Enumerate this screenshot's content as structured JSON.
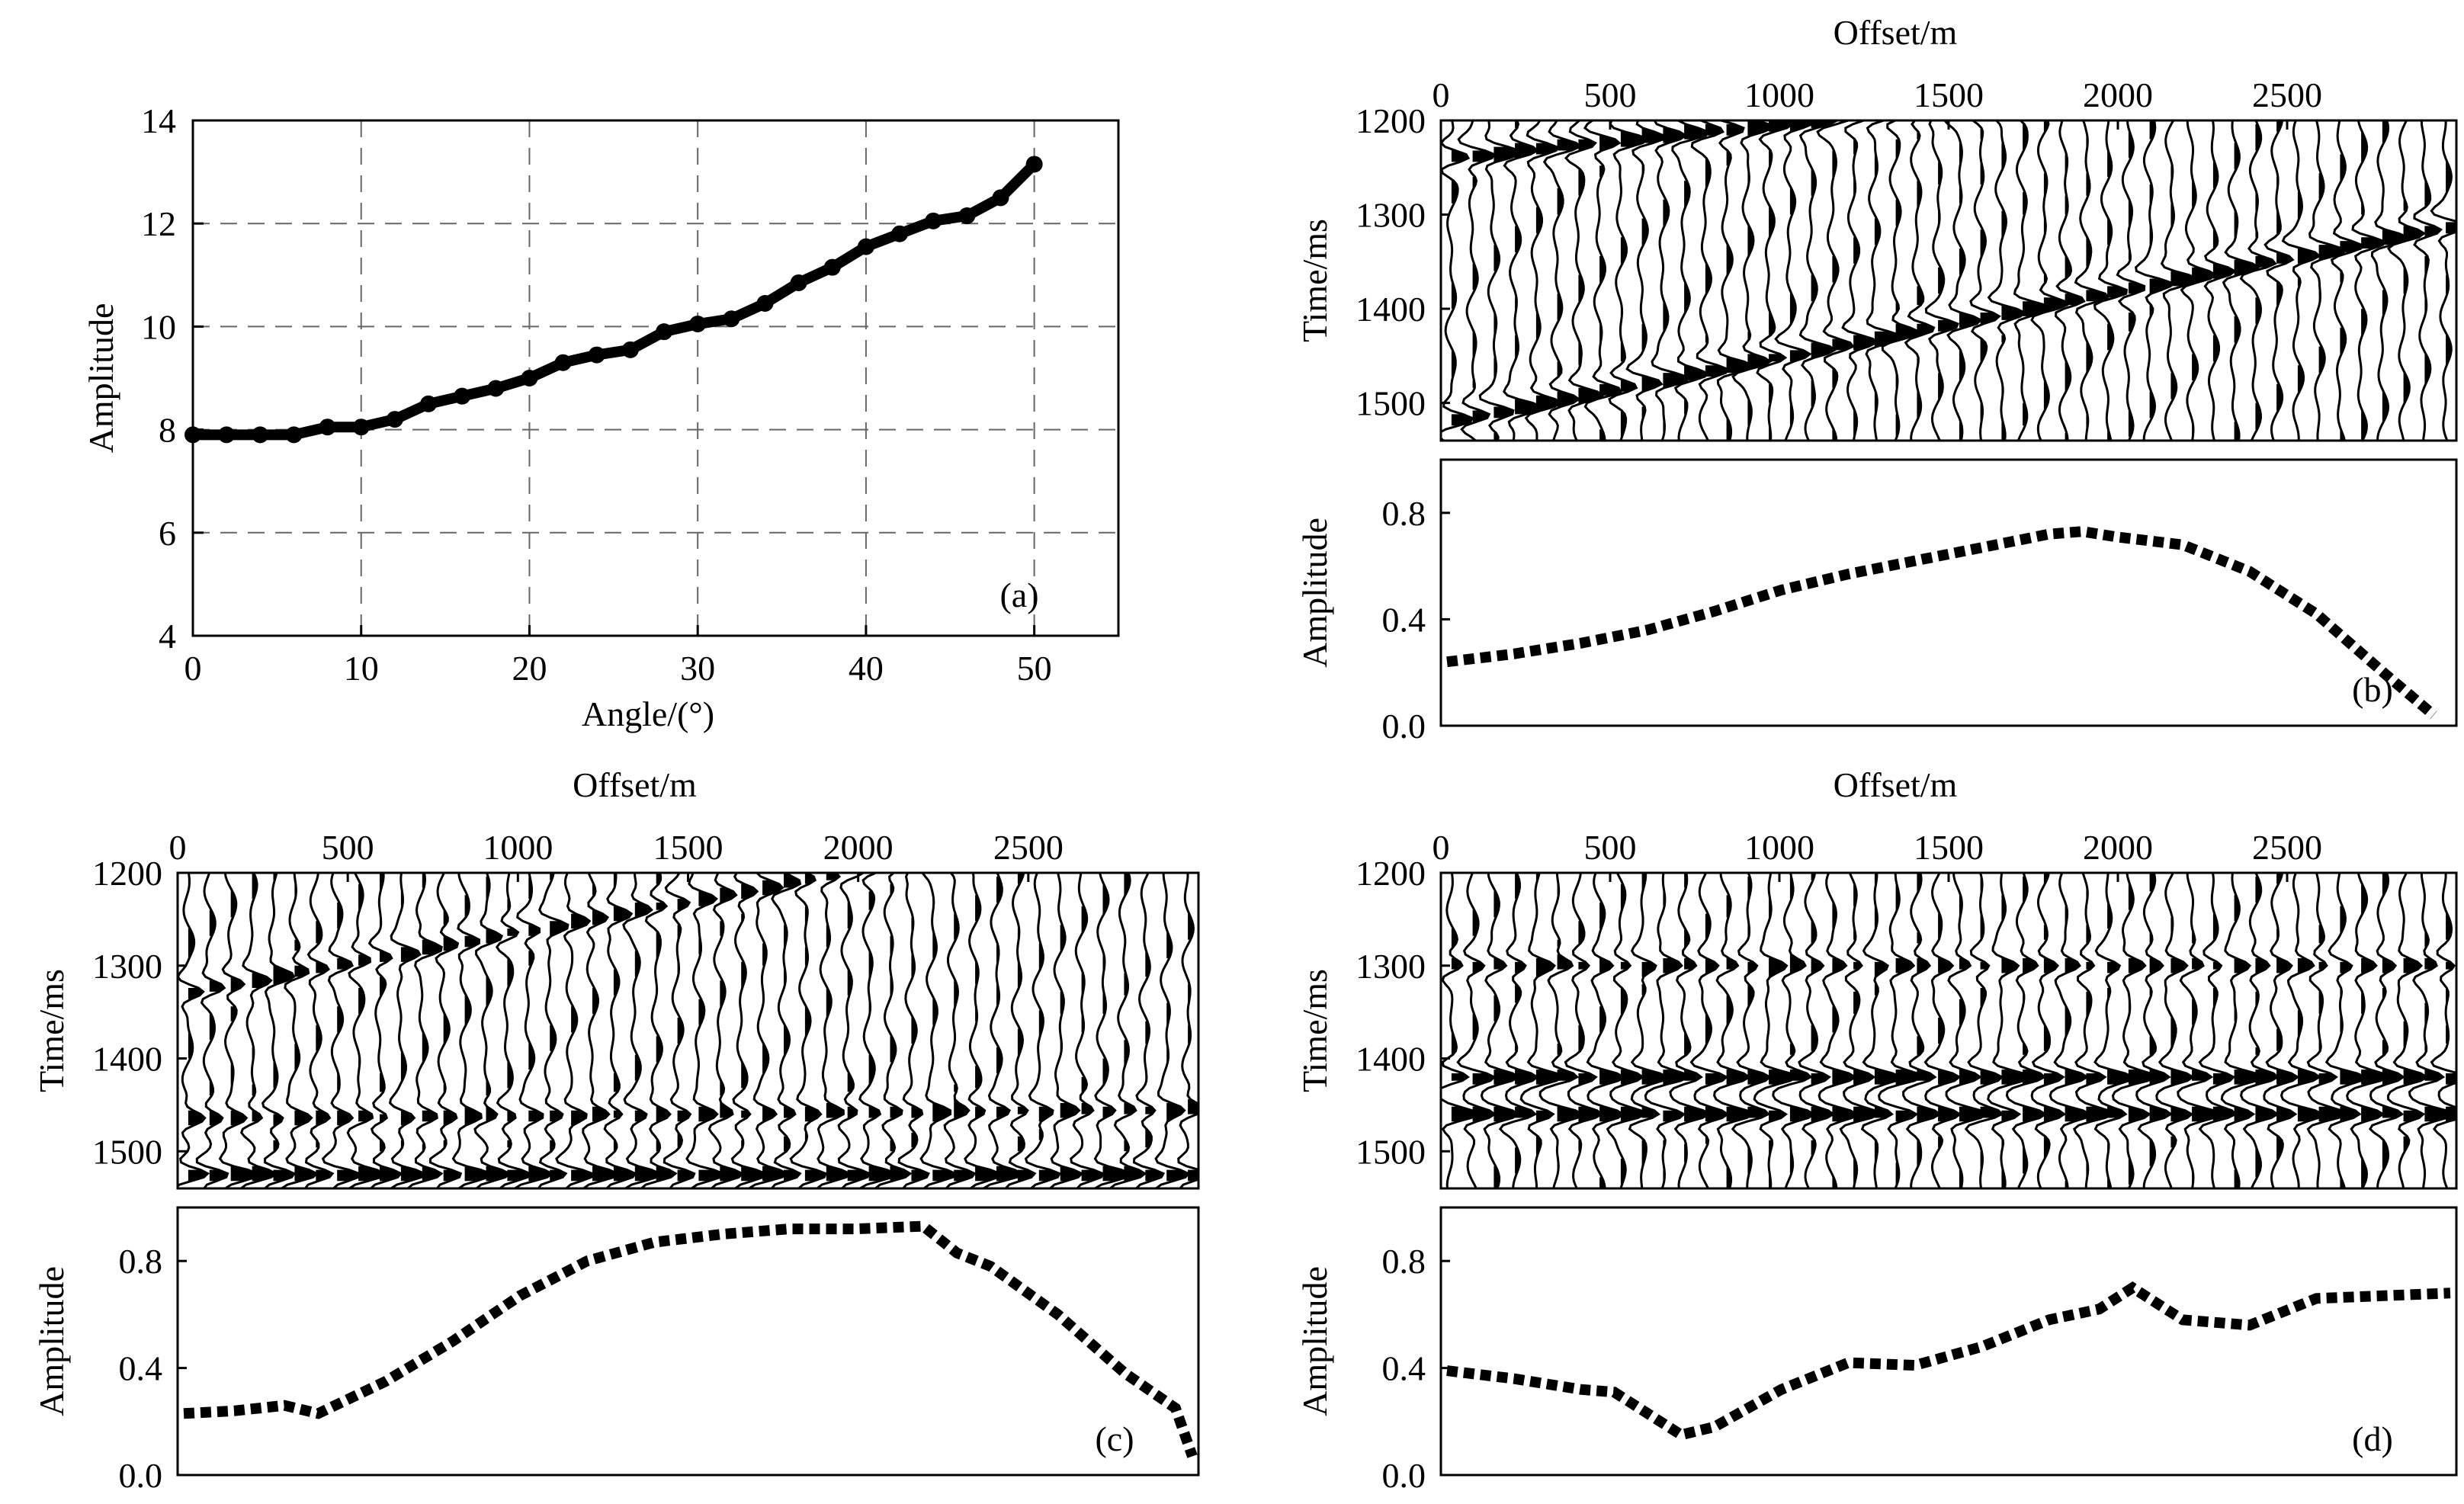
{
  "chart_data": [
    {
      "panel": "a",
      "type": "line",
      "panel_label": "(a)",
      "xlabel": "Angle/(°)",
      "ylabel": "Amplitude",
      "xlim": [
        0,
        55
      ],
      "ylim": [
        4,
        14
      ],
      "xticks": [
        0,
        10,
        20,
        30,
        40,
        50
      ],
      "yticks": [
        4,
        6,
        8,
        10,
        12,
        14
      ],
      "grid": true,
      "marker": "circle",
      "x": [
        0,
        2,
        4,
        6,
        8,
        10,
        12,
        14,
        16,
        18,
        20,
        22,
        24,
        26,
        28,
        30,
        32,
        34,
        36,
        38,
        40,
        42,
        44,
        46,
        48,
        50
      ],
      "y": [
        7.9,
        7.9,
        7.9,
        7.9,
        8.05,
        8.05,
        8.2,
        8.5,
        8.65,
        8.8,
        9.0,
        9.3,
        9.45,
        9.55,
        9.9,
        10.05,
        10.15,
        10.45,
        10.85,
        11.15,
        11.55,
        11.8,
        12.05,
        12.15,
        12.5,
        13.15
      ]
    },
    {
      "panel": "b",
      "type": "seismic_gather_with_line",
      "panel_label": "(b)",
      "gather": {
        "xlabel": "Offset/m",
        "ylabel": "Time/ms",
        "xlim": [
          0,
          3000
        ],
        "ylim": [
          1200,
          1540
        ],
        "xticks": [
          0,
          500,
          1000,
          1500,
          2000,
          2500
        ],
        "yticks": [
          1200,
          1300,
          1400,
          1500
        ],
        "events": [
          {
            "t0": 1240,
            "t1": 1130,
            "strength": 1.0
          },
          {
            "t0": 1520,
            "t1": 1310,
            "strength": 1.0
          }
        ]
      },
      "amplitude": {
        "ylabel": "Amplitude",
        "ylim": [
          0.0,
          1.0
        ],
        "yticks": [
          0.0,
          0.4,
          0.8
        ],
        "ytick_labels": [
          "0.0",
          "0.4",
          "0.8"
        ],
        "style": "dotted",
        "x": [
          0,
          200,
          400,
          600,
          800,
          1000,
          1200,
          1400,
          1600,
          1800,
          1900,
          2000,
          2200,
          2400,
          2600,
          2800,
          2950
        ],
        "y": [
          0.24,
          0.27,
          0.31,
          0.36,
          0.43,
          0.51,
          0.57,
          0.62,
          0.67,
          0.72,
          0.73,
          0.71,
          0.68,
          0.58,
          0.42,
          0.2,
          0.04
        ]
      }
    },
    {
      "panel": "c",
      "type": "seismic_gather_with_line",
      "panel_label": "(c)",
      "gather": {
        "xlabel": "Offset/m",
        "ylabel": "Time/ms",
        "xlim": [
          0,
          3000
        ],
        "ylim": [
          1200,
          1540
        ],
        "xticks": [
          0,
          500,
          1000,
          1500,
          2000,
          2500
        ],
        "yticks": [
          1200,
          1300,
          1400,
          1500
        ],
        "events": [
          {
            "t0": 1330,
            "t1": 1130,
            "strength": 0.7
          },
          {
            "t0": 1525,
            "t1": 1525,
            "strength": 1.0
          },
          {
            "t0": 1465,
            "t1": 1455,
            "strength": 0.6
          }
        ]
      },
      "amplitude": {
        "ylabel": "Amplitude",
        "ylim": [
          0.0,
          1.0
        ],
        "yticks": [
          0.0,
          0.4,
          0.8
        ],
        "ytick_labels": [
          "0.0",
          "0.4",
          "0.8"
        ],
        "style": "dotted",
        "x": [
          0,
          150,
          300,
          400,
          600,
          800,
          1000,
          1200,
          1400,
          1600,
          1800,
          2000,
          2200,
          2300,
          2400,
          2600,
          2800,
          2950,
          3000
        ],
        "y": [
          0.23,
          0.24,
          0.26,
          0.23,
          0.35,
          0.5,
          0.67,
          0.8,
          0.87,
          0.9,
          0.92,
          0.92,
          0.93,
          0.83,
          0.78,
          0.6,
          0.38,
          0.25,
          0.07
        ]
      }
    },
    {
      "panel": "d",
      "type": "seismic_gather_with_line",
      "panel_label": "(d)",
      "gather": {
        "xlabel": "Offset/m",
        "ylabel": "Time/ms",
        "xlim": [
          0,
          3000
        ],
        "ylim": [
          1200,
          1540
        ],
        "xticks": [
          0,
          500,
          1000,
          1500,
          2000,
          2500
        ],
        "yticks": [
          1200,
          1300,
          1400,
          1500
        ],
        "events": [
          {
            "t0": 1420,
            "t1": 1420,
            "strength": 1.0
          },
          {
            "t0": 1460,
            "t1": 1460,
            "strength": 1.0
          },
          {
            "t0": 1300,
            "t1": 1300,
            "strength": 0.6
          }
        ]
      },
      "amplitude": {
        "ylabel": "Amplitude",
        "ylim": [
          0.0,
          1.0
        ],
        "yticks": [
          0.0,
          0.4,
          0.8
        ],
        "ytick_labels": [
          "0.0",
          "0.4",
          "0.8"
        ],
        "style": "dotted",
        "x": [
          0,
          200,
          400,
          500,
          700,
          800,
          1000,
          1200,
          1400,
          1600,
          1800,
          1950,
          2050,
          2200,
          2400,
          2600,
          2800,
          3000
        ],
        "y": [
          0.39,
          0.36,
          0.32,
          0.31,
          0.15,
          0.18,
          0.32,
          0.42,
          0.41,
          0.48,
          0.58,
          0.62,
          0.7,
          0.58,
          0.56,
          0.66,
          0.67,
          0.68
        ]
      }
    }
  ]
}
